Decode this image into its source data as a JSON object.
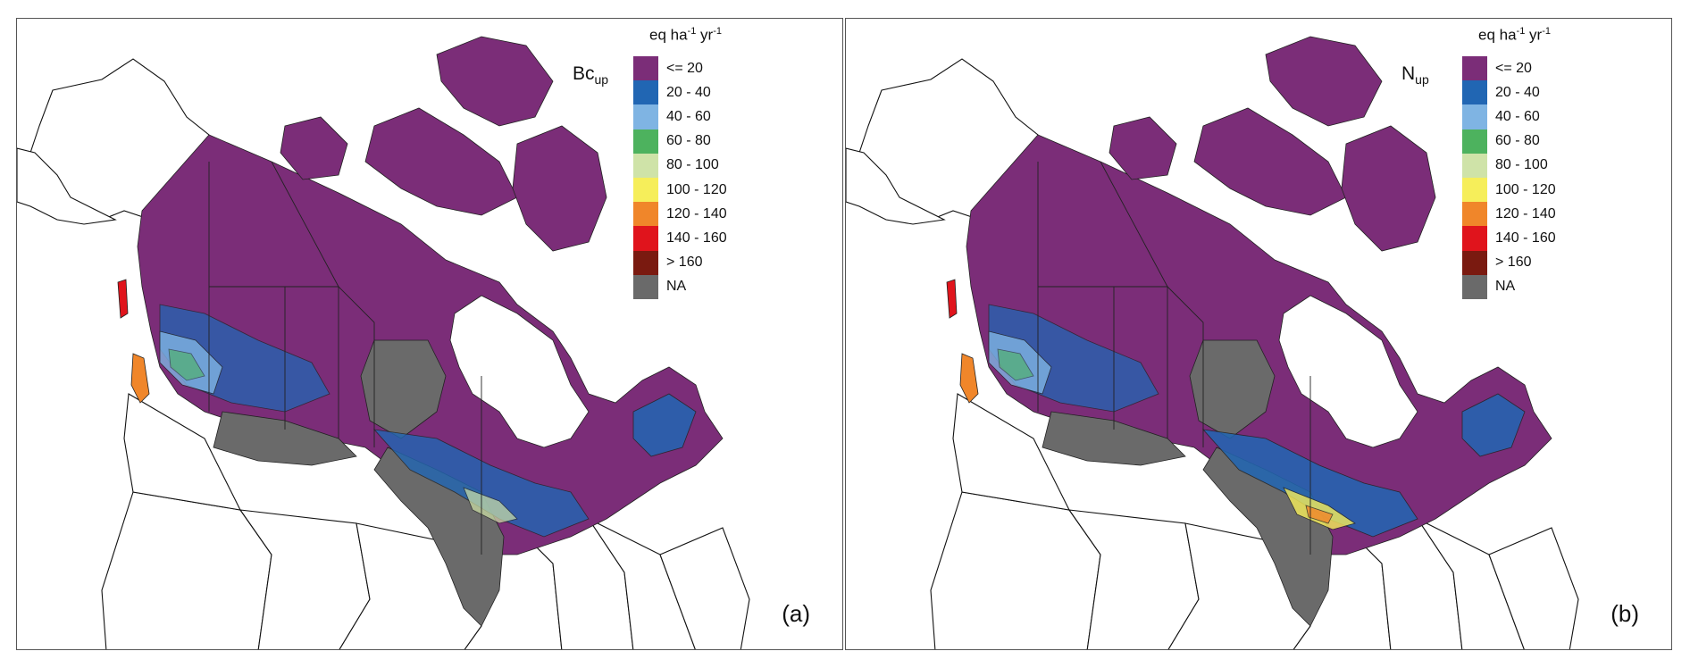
{
  "panels": [
    {
      "id": "a",
      "tag": "(a)",
      "variable": "Bc",
      "variable_sub": "up",
      "unit_base": "eq ha",
      "unit_exp1": "-1",
      "unit_mid": " yr",
      "unit_exp2": "-1"
    },
    {
      "id": "b",
      "tag": "(b)",
      "variable": "N",
      "variable_sub": "up",
      "unit_base": "eq ha",
      "unit_exp1": "-1",
      "unit_mid": " yr",
      "unit_exp2": "-1"
    }
  ],
  "legend": {
    "classes": [
      {
        "label": "<= 20",
        "color": "#7b2d78"
      },
      {
        "label": "20 - 40",
        "color": "#2166b3"
      },
      {
        "label": "40 - 60",
        "color": "#7fb4e3"
      },
      {
        "label": "60 - 80",
        "color": "#4db25e"
      },
      {
        "label": "80 - 100",
        "color": "#cfe3a8"
      },
      {
        "label": "100 - 120",
        "color": "#f6ee5a"
      },
      {
        "label": "120 - 140",
        "color": "#f0862a"
      },
      {
        "label": "140 - 160",
        "color": "#e0141c"
      },
      {
        "label": "> 160",
        "color": "#7a1a10"
      },
      {
        "label": "NA",
        "color": "#6a6a6a"
      }
    ]
  }
}
